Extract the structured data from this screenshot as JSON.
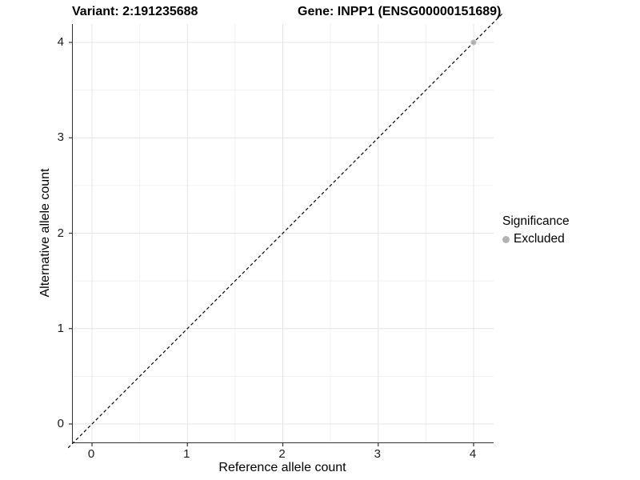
{
  "chart_data": {
    "type": "scatter",
    "title_left": "Variant: 2:191235688",
    "title_right": "Gene: INPP1 (ENSG00000151689)",
    "xlabel": "Reference allele count",
    "ylabel": "Alternative allele count",
    "xlim": [
      -0.2,
      4.2
    ],
    "ylim": [
      -0.2,
      4.2
    ],
    "xticks": [
      0,
      1,
      2,
      3,
      4
    ],
    "yticks": [
      0,
      1,
      2,
      3,
      4
    ],
    "xminor": [
      0.5,
      1.5,
      2.5,
      3.5
    ],
    "yminor": [
      0.5,
      1.5,
      2.5,
      3.5
    ],
    "grid": true,
    "legend": {
      "title": "Significance",
      "position": "right",
      "items": [
        {
          "label": "Excluded",
          "color": "#b3b3b3"
        }
      ]
    },
    "series": [
      {
        "name": "Excluded",
        "color": "#b3b3b3",
        "points": [
          {
            "x": 4,
            "y": 4
          }
        ]
      }
    ],
    "reference_line": {
      "type": "identity",
      "slope": 1,
      "intercept": 0,
      "linestyle": "dashed",
      "color": "#000000"
    },
    "colors": {
      "grid_major": "#e4e4e4",
      "grid_minor": "#f1f1f1",
      "axis_line": "#333333",
      "tick": "#333333",
      "text": "#000000"
    }
  }
}
